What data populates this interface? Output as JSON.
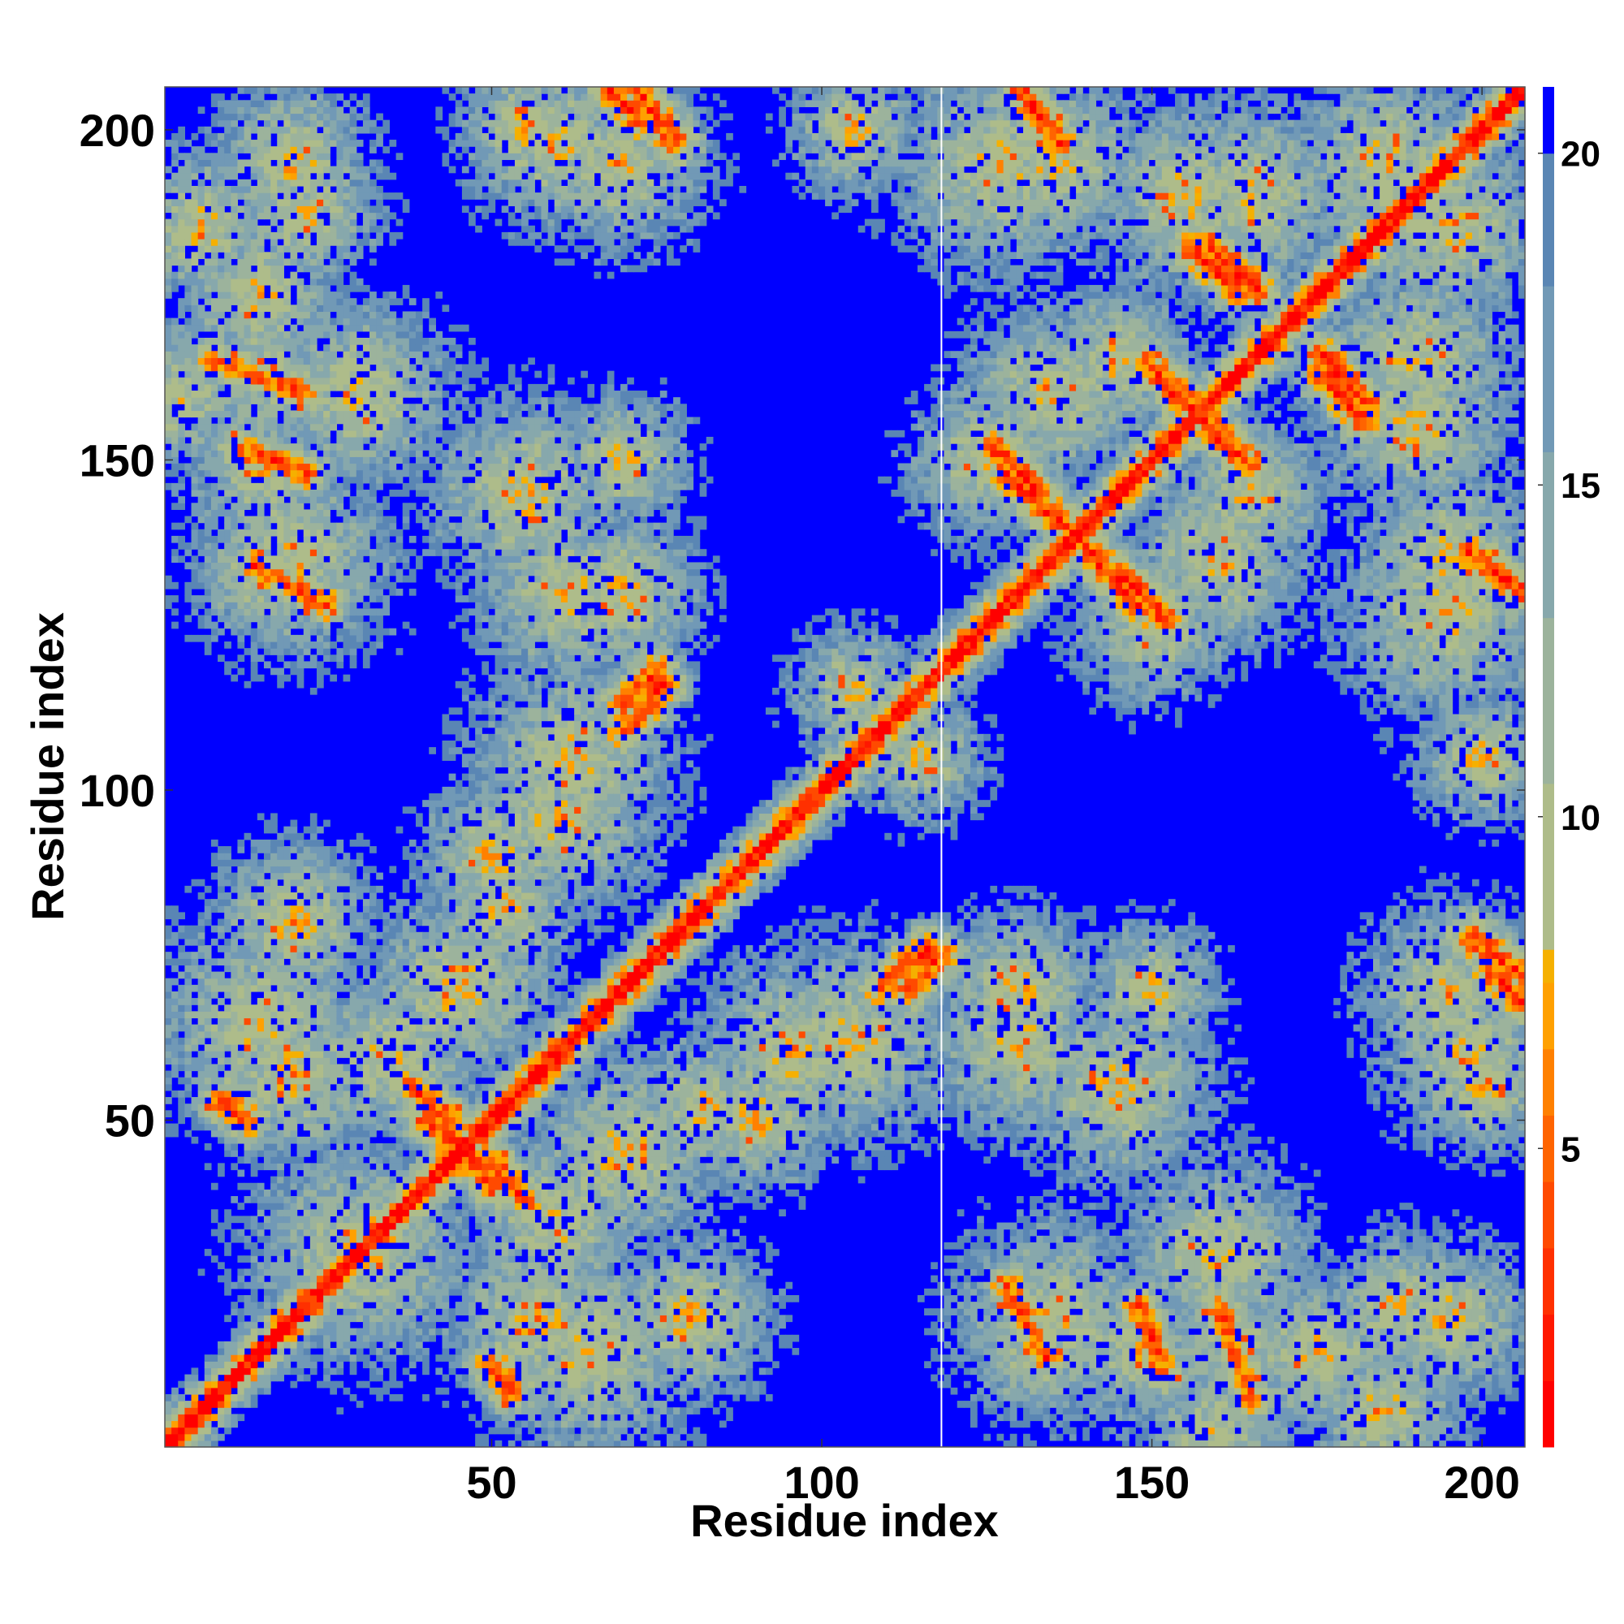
{
  "chart_data": {
    "type": "heatmap",
    "title": "",
    "xlabel": "Residue index",
    "ylabel": "Residue index",
    "n_residues": 206,
    "xlim": [
      1,
      206
    ],
    "ylim": [
      1,
      206
    ],
    "x_ticks": [
      50,
      100,
      150,
      200
    ],
    "y_ticks": [
      50,
      100,
      150,
      200
    ],
    "x_tick_labels": [
      "50",
      "100",
      "150",
      "200"
    ],
    "y_tick_labels": [
      "50",
      "100",
      "150",
      "200"
    ],
    "colorbar": {
      "min": 0.5,
      "max": 21,
      "ticks": [
        5,
        10,
        15,
        20
      ],
      "tick_labels": [
        "5",
        "10",
        "15",
        "20"
      ],
      "levels": [
        {
          "upto": 1.5,
          "color": "#ff0000"
        },
        {
          "upto": 2.5,
          "color": "#ff1800"
        },
        {
          "upto": 3.5,
          "color": "#ff3000"
        },
        {
          "upto": 4.5,
          "color": "#ff4a00"
        },
        {
          "upto": 5.5,
          "color": "#ff6400"
        },
        {
          "upto": 6.5,
          "color": "#ff8000"
        },
        {
          "upto": 7.5,
          "color": "#ffa000"
        },
        {
          "upto": 8.0,
          "color": "#f5b000"
        },
        {
          "upto": 10.5,
          "color": "#aebc8a"
        },
        {
          "upto": 13.0,
          "color": "#9cb39c"
        },
        {
          "upto": 15.5,
          "color": "#87a8ac"
        },
        {
          "upto": 18.0,
          "color": "#7199b6"
        },
        {
          "upto": 20.0,
          "color": "#5a86b4"
        },
        {
          "upto": 999,
          "color": "#0000ff"
        }
      ]
    },
    "gap_column_residue": 118,
    "diagonal_width": 5,
    "contact_segments": [
      {
        "from": [
          70,
          113
        ],
        "to": [
          75,
          118
        ],
        "strength": 2.5
      },
      {
        "from": [
          109,
          70
        ],
        "to": [
          116,
          76
        ],
        "strength": 2.5
      },
      {
        "from": [
          128,
          148
        ],
        "to": [
          138,
          139
        ],
        "strength": 2.0
      },
      {
        "from": [
          146,
          132
        ],
        "to": [
          152,
          126
        ],
        "strength": 2.0
      },
      {
        "from": [
          150,
          164
        ],
        "to": [
          160,
          154
        ],
        "strength": 2.0
      },
      {
        "from": [
          156,
          182
        ],
        "to": [
          163,
          176
        ],
        "strength": 2.0
      },
      {
        "from": [
          176,
          166
        ],
        "to": [
          182,
          159
        ],
        "strength": 2.0
      },
      {
        "from": [
          68,
          206
        ],
        "to": [
          73,
          201
        ],
        "strength": 2.5
      },
      {
        "from": [
          130,
          206
        ],
        "to": [
          135,
          200
        ],
        "strength": 2.5
      },
      {
        "from": [
          198,
          136
        ],
        "to": [
          206,
          130
        ],
        "strength": 2.5
      },
      {
        "from": [
          198,
          78
        ],
        "to": [
          206,
          72
        ],
        "strength": 2.5
      },
      {
        "from": [
          40,
          50
        ],
        "to": [
          48,
          44
        ],
        "strength": 3.0
      },
      {
        "from": [
          128,
          25
        ],
        "to": [
          134,
          14
        ],
        "strength": 3.5
      },
      {
        "from": [
          148,
          22
        ],
        "to": [
          152,
          12
        ],
        "strength": 3.5
      },
      {
        "from": [
          160,
          22
        ],
        "to": [
          165,
          8
        ],
        "strength": 3.5
      },
      {
        "from": [
          50,
          44
        ],
        "to": [
          55,
          38
        ],
        "strength": 3.0
      },
      {
        "from": [
          50,
          13
        ],
        "to": [
          53,
          9
        ],
        "strength": 3.0
      }
    ],
    "contact_blobs": [
      {
        "center": [
          3,
          160
        ],
        "radius": 11,
        "strength": 2.8
      },
      {
        "center": [
          15,
          163
        ],
        "radius": 10,
        "strength": 2.6
      },
      {
        "center": [
          15,
          148
        ],
        "radius": 10,
        "strength": 2.6
      },
      {
        "center": [
          15,
          133
        ],
        "radius": 9,
        "strength": 2.4
      },
      {
        "center": [
          6,
          185
        ],
        "radius": 10,
        "strength": 2.0
      },
      {
        "center": [
          22,
          187
        ],
        "radius": 9,
        "strength": 1.8
      },
      {
        "center": [
          60,
          198
        ],
        "radius": 11,
        "strength": 2.0
      },
      {
        "center": [
          55,
          145
        ],
        "radius": 12,
        "strength": 1.8
      },
      {
        "center": [
          62,
          130
        ],
        "radius": 12,
        "strength": 1.9
      },
      {
        "center": [
          62,
          105
        ],
        "radius": 13,
        "strength": 2.0
      },
      {
        "center": [
          50,
          90
        ],
        "radius": 9,
        "strength": 1.6
      },
      {
        "center": [
          15,
          65
        ],
        "radius": 14,
        "strength": 2.2
      },
      {
        "center": [
          35,
          60
        ],
        "radius": 12,
        "strength": 2.2
      },
      {
        "center": [
          30,
          30
        ],
        "radius": 15,
        "strength": 2.4
      },
      {
        "center": [
          70,
          45
        ],
        "radius": 12,
        "strength": 1.8
      },
      {
        "center": [
          57,
          20
        ],
        "radius": 12,
        "strength": 2.0
      },
      {
        "center": [
          80,
          20
        ],
        "radius": 10,
        "strength": 1.4
      },
      {
        "center": [
          95,
          60
        ],
        "radius": 12,
        "strength": 2.0
      },
      {
        "center": [
          82,
          52
        ],
        "radius": 9,
        "strength": 1.7
      },
      {
        "center": [
          105,
          115
        ],
        "radius": 8,
        "strength": 1.8
      },
      {
        "center": [
          127,
          195
        ],
        "radius": 14,
        "strength": 2.1
      },
      {
        "center": [
          135,
          160
        ],
        "radius": 12,
        "strength": 2.2
      },
      {
        "center": [
          125,
          150
        ],
        "radius": 10,
        "strength": 2.1
      },
      {
        "center": [
          155,
          190
        ],
        "radius": 12,
        "strength": 2.0
      },
      {
        "center": [
          185,
          195
        ],
        "radius": 12,
        "strength": 1.8
      },
      {
        "center": [
          190,
          165
        ],
        "radius": 12,
        "strength": 1.9
      },
      {
        "center": [
          195,
          135
        ],
        "radius": 12,
        "strength": 2.0
      },
      {
        "center": [
          130,
          70
        ],
        "radius": 10,
        "strength": 1.7
      },
      {
        "center": [
          150,
          70
        ],
        "radius": 8,
        "strength": 1.4
      },
      {
        "center": [
          160,
          30
        ],
        "radius": 12,
        "strength": 2.0
      },
      {
        "center": [
          135,
          20
        ],
        "radius": 13,
        "strength": 2.1
      },
      {
        "center": [
          175,
          15
        ],
        "radius": 10,
        "strength": 1.9
      },
      {
        "center": [
          195,
          20
        ],
        "radius": 10,
        "strength": 1.6
      },
      {
        "center": [
          195,
          70
        ],
        "radius": 11,
        "strength": 1.9
      },
      {
        "center": [
          200,
          105
        ],
        "radius": 8,
        "strength": 1.4
      },
      {
        "center": [
          165,
          145
        ],
        "radius": 10,
        "strength": 2.0
      },
      {
        "center": [
          200,
          55
        ],
        "radius": 8,
        "strength": 1.3
      }
    ]
  }
}
